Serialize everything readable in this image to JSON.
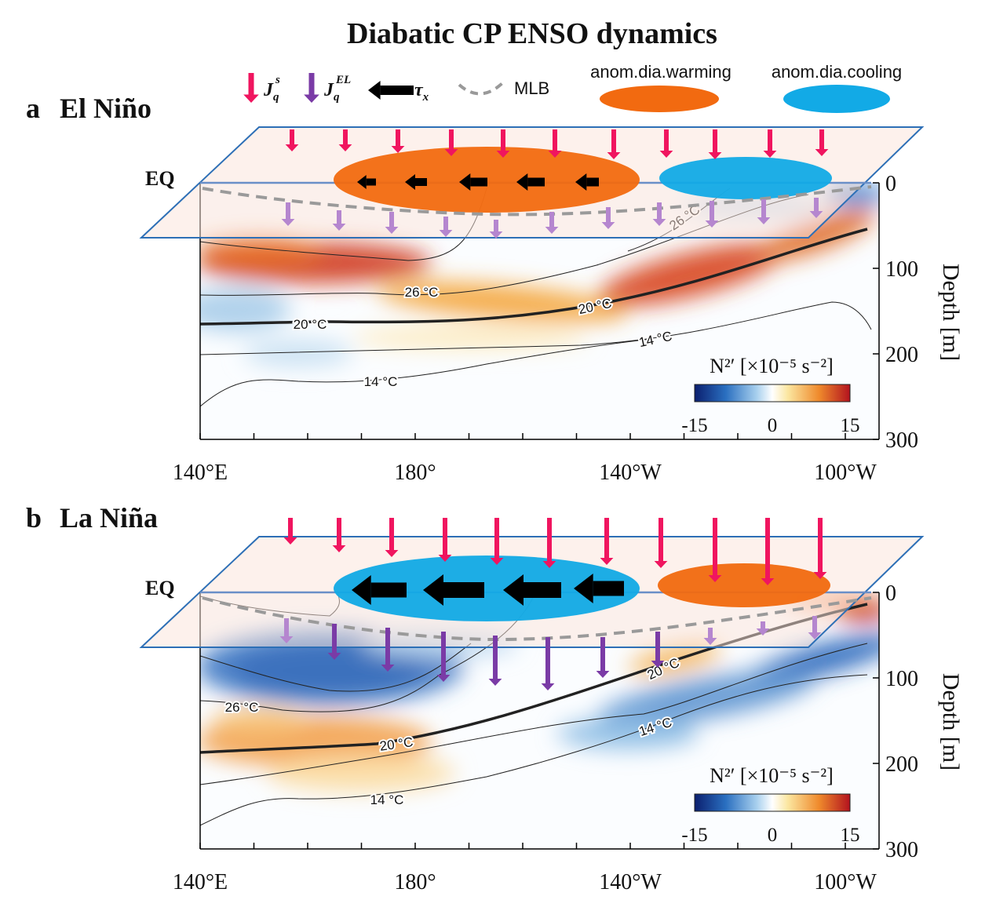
{
  "title": "Diabatic CP ENSO dynamics",
  "legend": {
    "surface_flux": {
      "symbol": "J",
      "sub": "q",
      "sup": "s"
    },
    "entrainment_flux": {
      "symbol": "J",
      "sub": "q",
      "sup": "EL"
    },
    "wind_stress": {
      "symbol": "τ",
      "sub": "x"
    },
    "mlb": "MLB",
    "warming": "anom.dia.warming",
    "cooling": "anom.dia.cooling"
  },
  "panels": [
    {
      "label": "a",
      "name": "El Niño",
      "eq_label": "EQ",
      "x_ticks": [
        "140°E",
        "180°",
        "140°W",
        "100°W"
      ],
      "depth_ticks": [
        "0",
        "100",
        "200",
        "300"
      ],
      "axis_label": "Depth [m]",
      "contour_labels": [
        "26 °C",
        "26 °C",
        "20 °C",
        "20 °C",
        "14 °C",
        "14 °C"
      ],
      "colorbar": {
        "title": "N²′ [×10⁻⁵ s⁻²]",
        "ticks": [
          "-15",
          "0",
          "15"
        ]
      }
    },
    {
      "label": "b",
      "name": "La Niña",
      "eq_label": "EQ",
      "x_ticks": [
        "140°E",
        "180°",
        "140°W",
        "100°W"
      ],
      "depth_ticks": [
        "0",
        "100",
        "200",
        "300"
      ],
      "axis_label": "Depth [m]",
      "contour_labels": [
        "26 °C",
        "20 °C",
        "20 °C",
        "14 °C",
        "14 °C"
      ],
      "colorbar": {
        "title": "N²′ [×10⁻⁵ s⁻²]",
        "ticks": [
          "-15",
          "0",
          "15"
        ]
      }
    }
  ]
}
